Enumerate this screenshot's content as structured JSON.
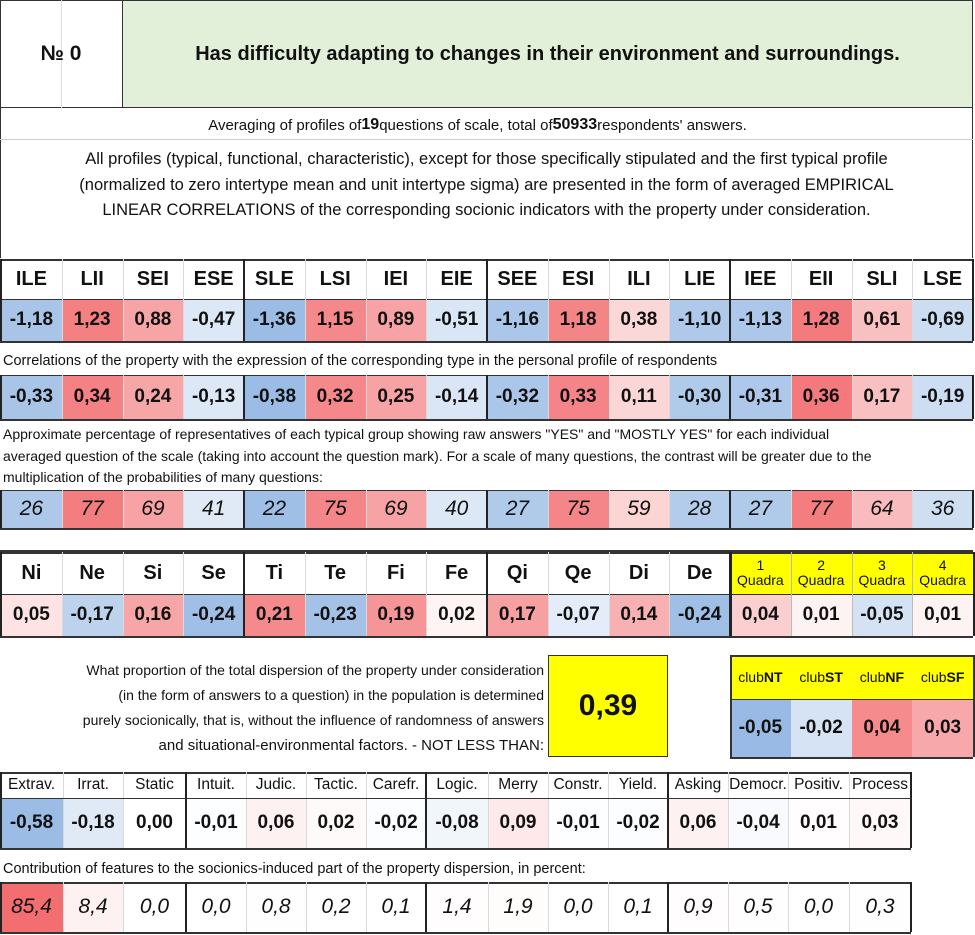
{
  "header": {
    "no_label": "№ 0",
    "title": "Has difficulty adapting to changes in their environment and surroundings."
  },
  "info": {
    "avg_prefix": "Averaging of profiles of ",
    "questions_count": "19",
    "avg_middle": " questions of scale, total of ",
    "respondents_count": "50933",
    "avg_suffix": " respondents' answers.",
    "desc_lines": [
      "All profiles (typical, functional, characteristic), except for those specifically stipulated and the first typical profile",
      "(normalized to zero intertype mean and unit intertype sigma) are presented in the form of averaged EMPIRICAL",
      "LINEAR CORRELATIONS of the corresponding socionic indicators with the property under consideration."
    ]
  },
  "types": {
    "headers": [
      "ILE",
      "LII",
      "SEI",
      "ESE",
      "SLE",
      "LSI",
      "IEI",
      "EIE",
      "SEE",
      "ESI",
      "ILI",
      "LIE",
      "IEE",
      "EII",
      "SLI",
      "LSE"
    ],
    "normalized": [
      "-1,18",
      "1,23",
      "0,88",
      "-0,47",
      "-1,36",
      "1,15",
      "0,89",
      "-0,51",
      "-1,16",
      "1,18",
      "0,38",
      "-1,10",
      "-1,13",
      "1,28",
      "0,61",
      "-0,69"
    ],
    "corr_label": "Correlations of the property with the expression of the corresponding type in the personal profile of respondents",
    "correlations": [
      "-0,33",
      "0,34",
      "0,24",
      "-0,13",
      "-0,38",
      "0,32",
      "0,25",
      "-0,14",
      "-0,32",
      "0,33",
      "0,11",
      "-0,30",
      "-0,31",
      "0,36",
      "0,17",
      "-0,19"
    ],
    "pct_label_lines": [
      "Approximate percentage of representatives of each typical group showing raw answers \"YES\" and \"MOSTLY YES\" for each individual",
      "averaged question of the scale (taking into account the question mark). For a scale of many questions, the contrast will be greater due to the",
      "multiplication of the probabilities of many questions:"
    ],
    "percentages": [
      "26",
      "77",
      "69",
      "41",
      "22",
      "75",
      "69",
      "40",
      "27",
      "75",
      "59",
      "28",
      "27",
      "77",
      "64",
      "36"
    ]
  },
  "functions": {
    "headers": [
      "Ni",
      "Ne",
      "Si",
      "Se",
      "Ti",
      "Te",
      "Fi",
      "Fe",
      "Qi",
      "Qe",
      "Di",
      "De"
    ],
    "values": [
      "0,05",
      "-0,17",
      "0,16",
      "-0,24",
      "0,21",
      "-0,23",
      "0,19",
      "0,02",
      "0,17",
      "-0,07",
      "0,14",
      "-0,24"
    ]
  },
  "quadras": {
    "headers": [
      {
        "num": "1",
        "label": "Quadra"
      },
      {
        "num": "2",
        "label": "Quadra"
      },
      {
        "num": "3",
        "label": "Quadra"
      },
      {
        "num": "4",
        "label": "Quadra"
      }
    ],
    "values": [
      "0,04",
      "0,01",
      "-0,05",
      "0,01"
    ]
  },
  "dispersion": {
    "lines": [
      "What proportion of the total dispersion of the property under consideration",
      "(in the form of answers to a question) in the population is determined",
      "purely socionically, that is, without the influence of randomness of answers",
      "and situational-environmental factors. - NOT LESS THAN:"
    ],
    "value": "0,39"
  },
  "clubs": {
    "prefix": "club",
    "headers": [
      "NT",
      "ST",
      "NF",
      "SF"
    ],
    "values": [
      "-0,05",
      "-0,02",
      "0,04",
      "0,03"
    ]
  },
  "traits": {
    "headers": [
      "Extrav.",
      "Irrat.",
      "Static",
      "Intuit.",
      "Judic.",
      "Tactic.",
      "Carefr.",
      "Logic.",
      "Merry",
      "Constr.",
      "Yield.",
      "Asking",
      "Democr.",
      "Positiv.",
      "Process"
    ],
    "values": [
      "-0,58",
      "-0,18",
      "0,00",
      "-0,01",
      "0,06",
      "0,02",
      "-0,02",
      "-0,08",
      "0,09",
      "-0,01",
      "-0,02",
      "0,06",
      "-0,04",
      "0,01",
      "0,03"
    ],
    "contrib_label": "Contribution of features to the socionics-induced part of the property dispersion, in percent:",
    "contributions": [
      "85,4",
      "8,4",
      "0,0",
      "0,0",
      "0,8",
      "0,2",
      "0,1",
      "1,4",
      "1,9",
      "0,0",
      "0,1",
      "0,9",
      "0,5",
      "0,0",
      "0,3"
    ]
  },
  "colors": {
    "title_bg": "#e2efd9",
    "highlight_yellow": "#ffff00",
    "strong_red": "#f3777a",
    "strong_blue": "#9fbfe5"
  }
}
